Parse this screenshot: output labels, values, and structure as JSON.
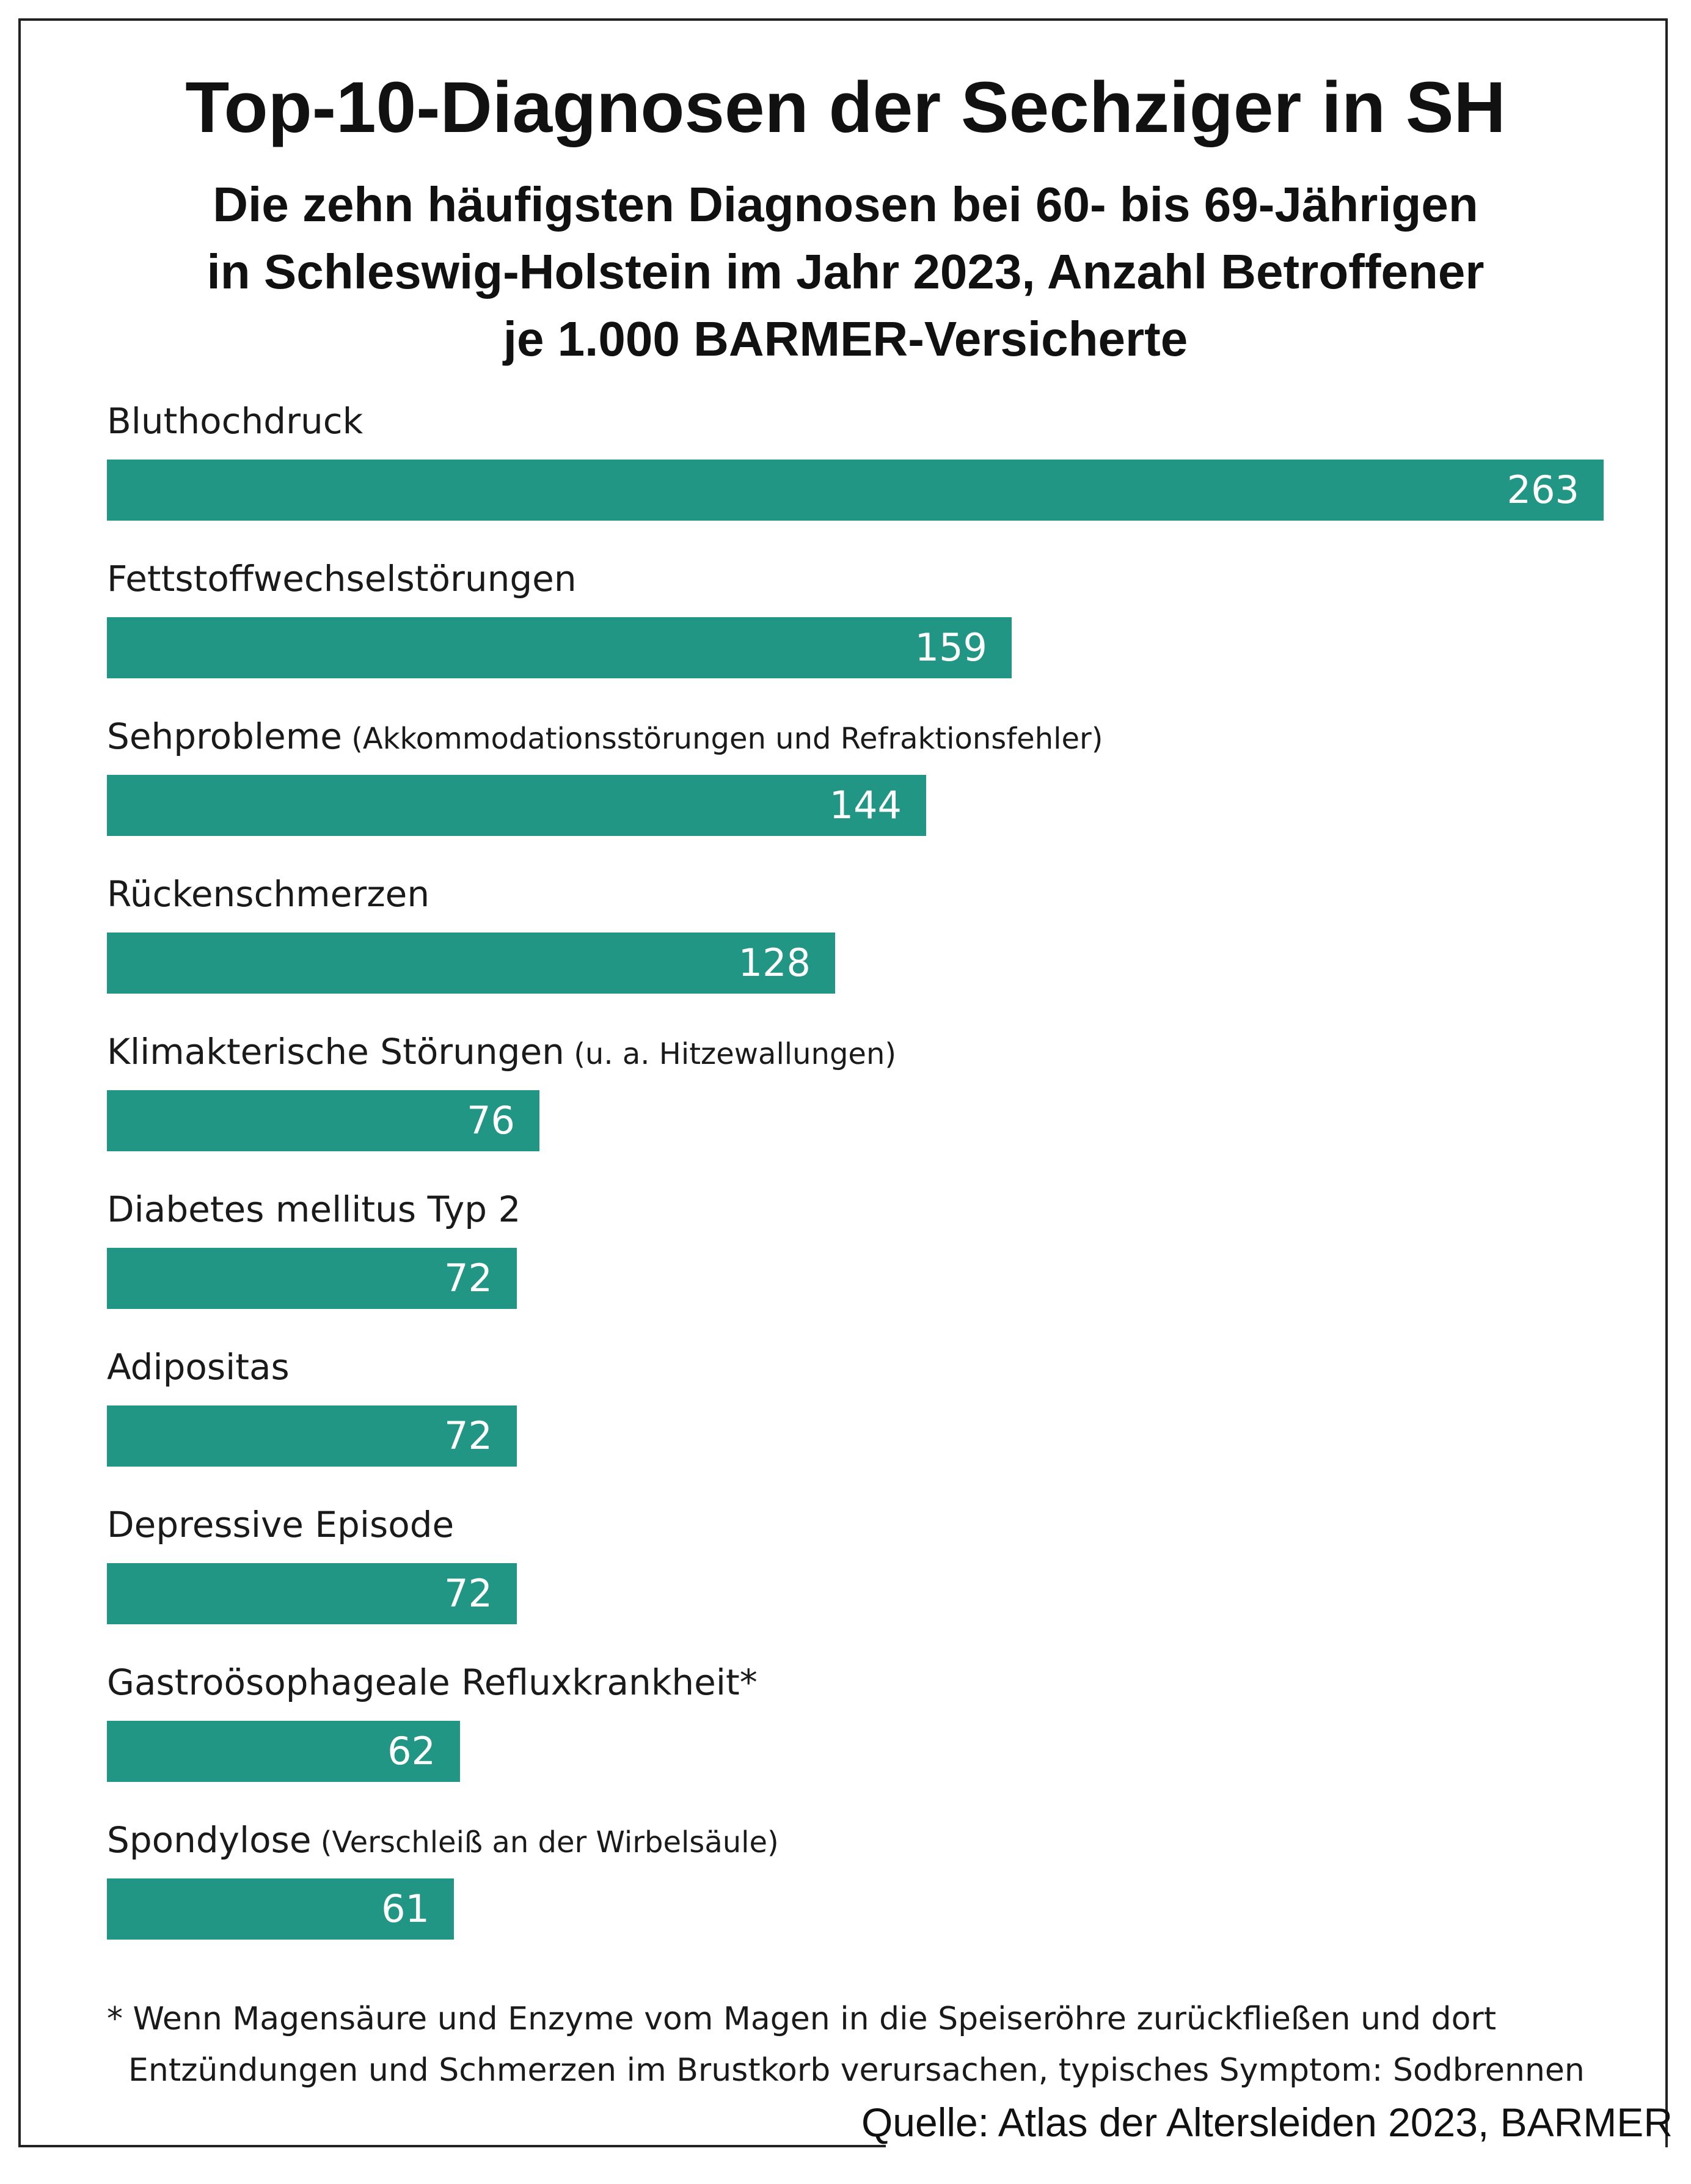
{
  "colors": {
    "bar": "#219684",
    "text": "#1a1a1a",
    "value_text": "#ffffff"
  },
  "chart_data": {
    "type": "bar",
    "orientation": "horizontal",
    "title": "Top-10-Diagnosen der Sechziger in SH",
    "subtitle_lines": [
      "Die zehn häufigsten Diagnosen bei 60- bis 69-Jährigen",
      "in Schleswig-Holstein im Jahr 2023, Anzahl Betroffener",
      "je 1.000 BARMER-Versicherte"
    ],
    "categories": [
      {
        "name": "Bluthochdruck",
        "note": ""
      },
      {
        "name": "Fettstoffwechselstörungen",
        "note": ""
      },
      {
        "name": "Sehprobleme",
        "note": "(Akkommodationsstörungen und Refraktionsfehler)"
      },
      {
        "name": "Rückenschmerzen",
        "note": ""
      },
      {
        "name": "Klimakterische Störungen",
        "note": "(u. a. Hitzewallungen)"
      },
      {
        "name": "Diabetes mellitus Typ 2",
        "note": ""
      },
      {
        "name": "Adipositas",
        "note": ""
      },
      {
        "name": "Depressive Episode",
        "note": ""
      },
      {
        "name": "Gastroösophageale Refluxkrankheit*",
        "note": ""
      },
      {
        "name": "Spondylose",
        "note": "(Verschleiß an der Wirbelsäule)"
      }
    ],
    "values": [
      263,
      159,
      144,
      128,
      76,
      72,
      72,
      72,
      62,
      61
    ],
    "xlim": [
      0,
      263
    ],
    "grid": false,
    "legend": "none"
  },
  "footnote": {
    "line1": "* Wenn Magensäure und Enzyme vom Magen in die Speiseröhre zurückfließen und dort",
    "line2": "Entzündungen und Schmerzen im Brustkorb verursachen, typisches Symptom: Sodbrennen"
  },
  "source": "Quelle: Atlas der Altersleiden 2023, BARMER"
}
